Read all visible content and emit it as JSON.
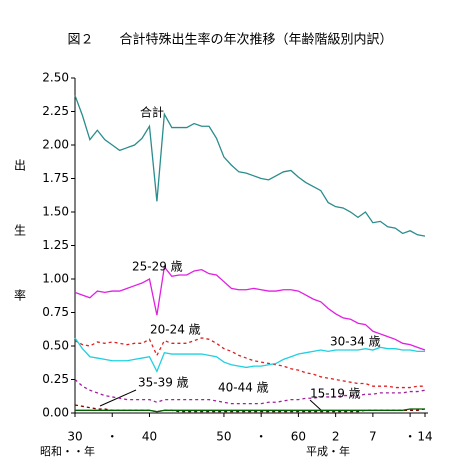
{
  "chart_data": {
    "type": "line",
    "title": "図２　　合計特殊出生率の年次推移（年齢階級別内訳）",
    "ylabel": [
      "出",
      "生",
      "率"
    ],
    "xlabels": [
      "昭和・・年",
      "平成・年"
    ],
    "categories": [
      "30",
      null,
      null,
      null,
      null,
      "・",
      null,
      null,
      null,
      null,
      "40",
      null,
      null,
      null,
      null,
      null,
      null,
      null,
      null,
      null,
      "50",
      null,
      null,
      null,
      null,
      "・",
      null,
      null,
      null,
      null,
      "60",
      null,
      null,
      null,
      null,
      "2",
      null,
      null,
      null,
      null,
      "7",
      null,
      null,
      null,
      null,
      "・",
      null,
      "14"
    ],
    "ylim": [
      0,
      2.5
    ],
    "yticks": [
      {
        "value": 0,
        "label": "0.00"
      },
      {
        "value": 0.25,
        "label": "0.25"
      },
      {
        "value": 0.5,
        "label": "0.50"
      },
      {
        "value": 0.75,
        "label": "0.75"
      },
      {
        "value": 1,
        "label": "1.00"
      },
      {
        "value": 1.25,
        "label": "1.25"
      },
      {
        "value": 1.5,
        "label": "1.50"
      },
      {
        "value": 1.75,
        "label": "1.75"
      },
      {
        "value": 2,
        "label": "2.00"
      },
      {
        "value": 2.25,
        "label": "2.25"
      },
      {
        "value": 2.5,
        "label": "2.50"
      }
    ],
    "series": [
      {
        "name": "合計",
        "color": "#2a8c8c",
        "dash": false,
        "values": [
          2.37,
          2.22,
          2.04,
          2.11,
          2.04,
          2.0,
          1.96,
          1.98,
          2.0,
          2.05,
          2.14,
          1.58,
          2.23,
          2.13,
          2.13,
          2.13,
          2.16,
          2.14,
          2.14,
          2.05,
          1.91,
          1.85,
          1.8,
          1.79,
          1.77,
          1.75,
          1.74,
          1.77,
          1.8,
          1.81,
          1.76,
          1.72,
          1.69,
          1.66,
          1.57,
          1.54,
          1.53,
          1.5,
          1.46,
          1.5,
          1.42,
          1.43,
          1.39,
          1.38,
          1.34,
          1.36,
          1.33,
          1.32
        ]
      },
      {
        "name": "25-29 歳",
        "color": "#e020e0",
        "dash": false,
        "values": [
          0.9,
          0.88,
          0.86,
          0.91,
          0.9,
          0.91,
          0.91,
          0.93,
          0.95,
          0.97,
          1.0,
          0.73,
          1.09,
          1.02,
          1.03,
          1.03,
          1.06,
          1.07,
          1.04,
          1.03,
          0.98,
          0.93,
          0.92,
          0.92,
          0.93,
          0.92,
          0.91,
          0.91,
          0.92,
          0.92,
          0.91,
          0.88,
          0.85,
          0.83,
          0.78,
          0.74,
          0.71,
          0.7,
          0.67,
          0.66,
          0.61,
          0.59,
          0.57,
          0.55,
          0.52,
          0.51,
          0.49,
          0.47
        ]
      },
      {
        "name": "20-24 歳",
        "color": "#e02020",
        "dash": true,
        "values": [
          0.54,
          0.51,
          0.5,
          0.53,
          0.52,
          0.53,
          0.52,
          0.51,
          0.52,
          0.52,
          0.55,
          0.43,
          0.54,
          0.52,
          0.52,
          0.52,
          0.54,
          0.56,
          0.55,
          0.52,
          0.48,
          0.46,
          0.43,
          0.41,
          0.39,
          0.38,
          0.37,
          0.36,
          0.35,
          0.33,
          0.32,
          0.3,
          0.29,
          0.27,
          0.26,
          0.25,
          0.24,
          0.23,
          0.22,
          0.22,
          0.2,
          0.2,
          0.2,
          0.19,
          0.19,
          0.19,
          0.2,
          0.2
        ]
      },
      {
        "name": "30-34 歳",
        "color": "#20d0e0",
        "dash": false,
        "values": [
          0.56,
          0.48,
          0.42,
          0.41,
          0.4,
          0.39,
          0.39,
          0.39,
          0.4,
          0.41,
          0.42,
          0.31,
          0.45,
          0.44,
          0.44,
          0.44,
          0.44,
          0.44,
          0.43,
          0.42,
          0.38,
          0.36,
          0.35,
          0.34,
          0.35,
          0.35,
          0.36,
          0.37,
          0.4,
          0.42,
          0.44,
          0.45,
          0.46,
          0.47,
          0.46,
          0.47,
          0.47,
          0.47,
          0.47,
          0.48,
          0.47,
          0.49,
          0.48,
          0.48,
          0.47,
          0.47,
          0.46,
          0.46
        ]
      },
      {
        "name": "35-39 歳",
        "color": "#a020a0",
        "dash": true,
        "values": [
          0.25,
          0.2,
          0.17,
          0.15,
          0.13,
          0.12,
          0.11,
          0.1,
          0.1,
          0.1,
          0.1,
          0.08,
          0.1,
          0.1,
          0.1,
          0.1,
          0.1,
          0.1,
          0.1,
          0.09,
          0.08,
          0.07,
          0.07,
          0.07,
          0.07,
          0.07,
          0.08,
          0.08,
          0.09,
          0.1,
          0.1,
          0.11,
          0.11,
          0.12,
          0.12,
          0.12,
          0.13,
          0.13,
          0.13,
          0.14,
          0.14,
          0.15,
          0.15,
          0.15,
          0.15,
          0.16,
          0.16,
          0.17
        ]
      },
      {
        "name": "40-44 歳",
        "color": "#800000",
        "dash": true,
        "values": [
          0.06,
          0.05,
          0.04,
          0.03,
          0.03,
          0.02,
          0.02,
          0.02,
          0.02,
          0.02,
          0.02,
          0.01,
          0.02,
          0.02,
          0.01,
          0.01,
          0.01,
          0.01,
          0.01,
          0.01,
          0.01,
          0.01,
          0.01,
          0.01,
          0.01,
          0.01,
          0.01,
          0.01,
          0.01,
          0.01,
          0.01,
          0.01,
          0.01,
          0.01,
          0.01,
          0.01,
          0.01,
          0.01,
          0.01,
          0.02,
          0.02,
          0.02,
          0.02,
          0.02,
          0.02,
          0.02,
          0.02,
          0.03
        ]
      },
      {
        "name": "15-19 歳",
        "color": "#006000",
        "dash": false,
        "values": [
          0.02,
          0.02,
          0.02,
          0.02,
          0.02,
          0.02,
          0.02,
          0.02,
          0.02,
          0.02,
          0.02,
          0.01,
          0.02,
          0.02,
          0.02,
          0.02,
          0.02,
          0.02,
          0.02,
          0.02,
          0.02,
          0.02,
          0.02,
          0.02,
          0.02,
          0.02,
          0.02,
          0.02,
          0.02,
          0.02,
          0.02,
          0.02,
          0.02,
          0.02,
          0.02,
          0.02,
          0.02,
          0.02,
          0.02,
          0.02,
          0.02,
          0.02,
          0.02,
          0.02,
          0.02,
          0.03,
          0.03,
          0.03
        ]
      }
    ]
  }
}
